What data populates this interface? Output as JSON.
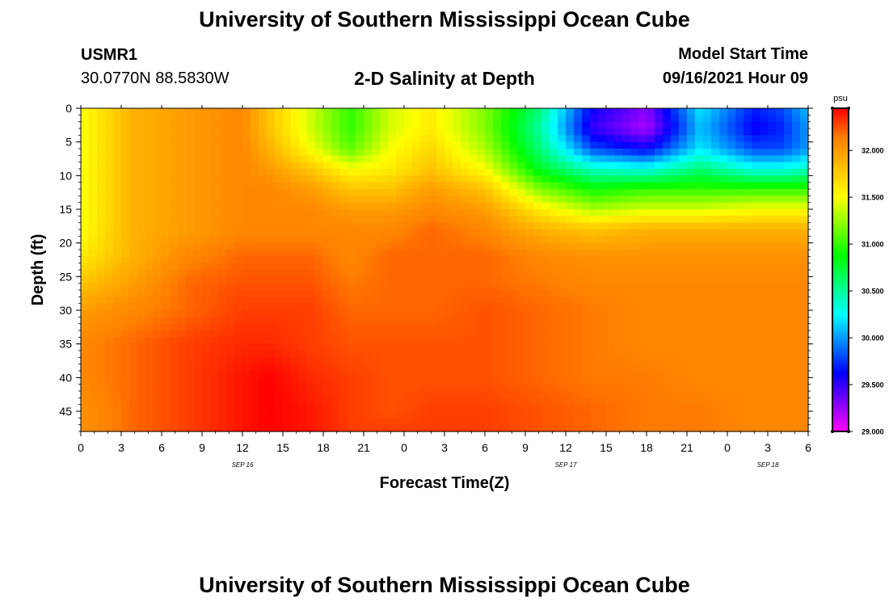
{
  "header": {
    "title": "University of Southern Mississippi Ocean Cube",
    "station": "USMR1",
    "coords": "30.0770N  88.5830W",
    "subtitle": "2-D Salinity at Depth",
    "model_label": "Model Start Time",
    "model_time": "09/16/2021 Hour 09"
  },
  "footer": {
    "title": "University of Southern Mississippi Ocean Cube"
  },
  "chart_data": {
    "type": "heatmap",
    "title": "2-D Salinity at Depth",
    "xlabel": "Forecast Time(Z)",
    "ylabel": "Depth (ft)",
    "x_ticks": [
      "0",
      "3",
      "6",
      "9",
      "12",
      "15",
      "18",
      "21",
      "0",
      "3",
      "6",
      "9",
      "12",
      "15",
      "18",
      "21",
      "0",
      "3",
      "6"
    ],
    "x_hours": [
      0,
      54
    ],
    "date_labels": [
      {
        "text": "SEP 16",
        "hour": 12
      },
      {
        "text": "SEP 17",
        "hour": 36
      },
      {
        "text": "SEP 18",
        "hour": 51
      }
    ],
    "y_ticks": [
      "0",
      "5",
      "10",
      "15",
      "20",
      "25",
      "30",
      "35",
      "40",
      "45"
    ],
    "ylim": [
      0,
      48
    ],
    "colorbar": {
      "unit": "psu",
      "min": 29.0,
      "max": 32.45,
      "tick_values": [
        29.0,
        29.5,
        30.0,
        30.5,
        31.0,
        31.5,
        32.0
      ],
      "tick_labels": [
        "29.000",
        "29.500",
        "30.000",
        "30.500",
        "31.000",
        "31.500",
        "32.000"
      ],
      "colors": [
        "#ff00ff",
        "#8000ff",
        "#0000ff",
        "#0080ff",
        "#00ffff",
        "#00ff80",
        "#00ff00",
        "#80ff00",
        "#ffff00",
        "#ffc000",
        "#ff8000",
        "#ff0000"
      ]
    },
    "salinity_psu": {
      "hours": [
        0,
        4,
        8,
        12,
        14,
        17,
        20,
        23,
        26,
        30,
        34,
        38,
        42,
        46,
        50,
        52,
        54
      ],
      "depths": [
        0,
        3,
        6,
        9,
        12,
        15,
        18,
        22,
        26,
        30,
        35,
        40,
        45,
        48
      ],
      "values": [
        [
          31.5,
          31.9,
          32.0,
          32.1,
          31.8,
          31.4,
          31.0,
          31.4,
          31.6,
          31.2,
          30.6,
          29.6,
          29.3,
          30.2,
          29.7,
          29.8,
          30.1
        ],
        [
          31.5,
          31.9,
          32.0,
          32.1,
          31.8,
          31.4,
          31.0,
          31.4,
          31.6,
          31.2,
          30.5,
          29.5,
          29.2,
          30.1,
          29.6,
          29.7,
          30.0
        ],
        [
          31.5,
          31.9,
          32.0,
          32.1,
          31.9,
          31.5,
          31.1,
          31.5,
          31.7,
          31.3,
          30.6,
          29.8,
          29.6,
          30.2,
          29.8,
          29.8,
          30.0
        ],
        [
          31.5,
          31.9,
          32.0,
          32.1,
          32.0,
          31.8,
          31.5,
          31.6,
          31.8,
          31.5,
          30.8,
          30.4,
          30.3,
          30.6,
          30.3,
          30.3,
          30.4
        ],
        [
          31.5,
          31.9,
          32.0,
          32.1,
          32.1,
          32.0,
          31.8,
          31.8,
          32.0,
          31.8,
          31.2,
          30.9,
          31.0,
          31.0,
          31.0,
          31.0,
          31.0
        ],
        [
          31.5,
          31.9,
          32.0,
          32.1,
          32.1,
          32.1,
          32.0,
          32.0,
          32.1,
          32.0,
          31.6,
          31.3,
          31.4,
          31.4,
          31.5,
          31.5,
          31.5
        ],
        [
          31.5,
          31.9,
          32.0,
          32.1,
          32.1,
          32.1,
          32.1,
          32.1,
          32.2,
          32.1,
          31.9,
          31.8,
          31.9,
          31.9,
          31.9,
          31.9,
          31.9
        ],
        [
          31.6,
          31.9,
          32.1,
          32.2,
          32.2,
          32.2,
          32.1,
          32.2,
          32.2,
          32.2,
          32.1,
          32.05,
          32.05,
          32.05,
          32.05,
          32.05,
          32.05
        ],
        [
          31.8,
          32.0,
          32.2,
          32.25,
          32.25,
          32.25,
          32.15,
          32.2,
          32.2,
          32.2,
          32.15,
          32.1,
          32.1,
          32.1,
          32.1,
          32.1,
          32.1
        ],
        [
          32.0,
          32.1,
          32.2,
          32.3,
          32.3,
          32.3,
          32.2,
          32.2,
          32.2,
          32.25,
          32.2,
          32.15,
          32.1,
          32.1,
          32.1,
          32.1,
          32.1
        ],
        [
          32.1,
          32.2,
          32.3,
          32.35,
          32.35,
          32.3,
          32.25,
          32.25,
          32.25,
          32.25,
          32.2,
          32.15,
          32.1,
          32.1,
          32.1,
          32.1,
          32.1
        ],
        [
          32.1,
          32.2,
          32.3,
          32.4,
          32.45,
          32.35,
          32.3,
          32.25,
          32.25,
          32.25,
          32.2,
          32.15,
          32.15,
          32.1,
          32.1,
          32.1,
          32.1
        ],
        [
          32.05,
          32.2,
          32.3,
          32.4,
          32.45,
          32.4,
          32.3,
          32.25,
          32.3,
          32.3,
          32.25,
          32.2,
          32.15,
          32.15,
          32.1,
          32.1,
          32.1
        ],
        [
          32.05,
          32.2,
          32.3,
          32.4,
          32.45,
          32.4,
          32.3,
          32.3,
          32.3,
          32.3,
          32.25,
          32.2,
          32.15,
          32.15,
          32.1,
          32.1,
          32.1
        ]
      ]
    }
  }
}
